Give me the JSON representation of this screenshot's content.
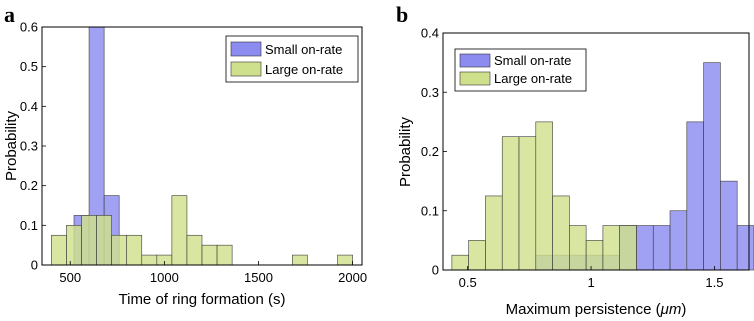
{
  "chart_data": [
    {
      "panel_label": "a",
      "type": "bar",
      "subtype": "overlapping-histogram",
      "xlabel": "Time of ring formation (s)",
      "ylabel": "Probability",
      "xlim": [
        350,
        2050
      ],
      "ylim": [
        0,
        0.6
      ],
      "xticks": [
        500,
        1000,
        1500,
        2000
      ],
      "xtick_labels": [
        "500",
        "1000",
        "1500",
        "2000"
      ],
      "yticks": [
        0,
        0.1,
        0.2,
        0.3,
        0.4,
        0.5,
        0.6
      ],
      "ytick_labels": [
        "0",
        "0.1",
        "0.2",
        "0.3",
        "0.4",
        "0.5",
        "0.6"
      ],
      "bin_width": 80,
      "grid": false,
      "legend_position": "top-right",
      "series": [
        {
          "name": "Small on-rate",
          "color": "#8c8cf0",
          "bin_starts": [
            520,
            600,
            680
          ],
          "values": [
            0.125,
            0.6,
            0.175
          ]
        },
        {
          "name": "Large on-rate",
          "color": "#cfe08c",
          "bin_starts": [
            400,
            480,
            560,
            640,
            720,
            800,
            880,
            960,
            1040,
            1120,
            1200,
            1280,
            1680,
            1920
          ],
          "values": [
            0.075,
            0.1,
            0.125,
            0.125,
            0.075,
            0.075,
            0.025,
            0.025,
            0.175,
            0.075,
            0.05,
            0.05,
            0.025,
            0.025
          ]
        }
      ]
    },
    {
      "panel_label": "b",
      "type": "bar",
      "subtype": "overlapping-histogram",
      "xlabel_main": "Maximum persistence (",
      "xlabel_unit": "μm",
      "xlabel_close": ")",
      "ylabel": "Probability",
      "xlim": [
        0.4,
        1.64
      ],
      "ylim": [
        0,
        0.4
      ],
      "xticks": [
        0.5,
        1,
        1.5
      ],
      "xtick_labels": [
        "0.5",
        "1",
        "1.5"
      ],
      "yticks": [
        0,
        0.1,
        0.2,
        0.3,
        0.4
      ],
      "ytick_labels": [
        "0",
        "0.1",
        "0.2",
        "0.3",
        "0.4"
      ],
      "bin_width": 0.068,
      "grid": false,
      "legend_position": "top-left",
      "series": [
        {
          "name": "Small on-rate",
          "color": "#8c8cf0",
          "bin_starts": [
            0.776,
            0.844,
            0.912,
            0.98,
            1.048,
            1.116,
            1.184,
            1.252,
            1.32,
            1.388,
            1.456,
            1.524,
            1.592
          ],
          "values": [
            0.025,
            0.025,
            0.025,
            0.025,
            0.025,
            0.075,
            0.075,
            0.075,
            0.1,
            0.25,
            0.35,
            0.15,
            0.075
          ]
        },
        {
          "name": "Large on-rate",
          "color": "#cfe08c",
          "bin_starts": [
            0.436,
            0.504,
            0.572,
            0.64,
            0.708,
            0.776,
            0.844,
            0.912,
            0.98,
            1.048,
            1.116
          ],
          "values": [
            0.025,
            0.05,
            0.125,
            0.225,
            0.225,
            0.25,
            0.125,
            0.075,
            0.05,
            0.075,
            0.075
          ]
        }
      ]
    }
  ]
}
